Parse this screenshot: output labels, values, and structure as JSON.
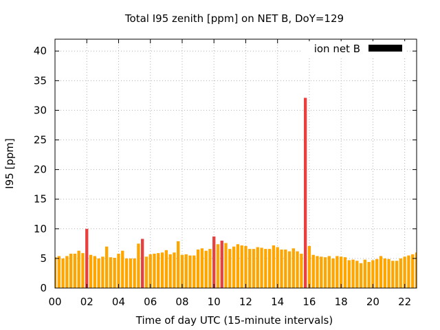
{
  "chart_data": {
    "type": "bar",
    "title": "Total I95 zenith [ppm] on NET B, DoY=129",
    "xlabel": "Time of day UTC (15-minute intervals)",
    "ylabel": "I95 [ppm]",
    "xlim": [
      0,
      22.75
    ],
    "ylim": [
      0,
      42
    ],
    "xticks": [
      "00",
      "02",
      "04",
      "06",
      "08",
      "10",
      "12",
      "14",
      "16",
      "18",
      "20",
      "22"
    ],
    "yticks": [
      "0",
      "5",
      "10",
      "15",
      "20",
      "25",
      "30",
      "35",
      "40"
    ],
    "grid": true,
    "legend": "top-right",
    "series": [
      {
        "name": "ion net B",
        "color": "#ffa500",
        "highlight_color": "#e8403f",
        "highlight_threshold": 7.9,
        "legend_color": "#000000",
        "interval_hours": 0.25,
        "values": [
          5.2,
          5.4,
          5.0,
          5.4,
          5.8,
          5.8,
          6.3,
          5.9,
          10.0,
          5.6,
          5.4,
          5.0,
          5.3,
          7.0,
          5.2,
          5.1,
          5.8,
          6.3,
          5.0,
          5.0,
          5.0,
          7.5,
          8.3,
          5.3,
          5.7,
          5.8,
          5.9,
          6.0,
          6.4,
          5.7,
          6.0,
          7.9,
          5.6,
          5.7,
          5.5,
          5.5,
          6.5,
          6.7,
          6.3,
          6.6,
          8.7,
          7.4,
          8.0,
          7.6,
          6.6,
          7.0,
          7.4,
          7.2,
          7.1,
          6.6,
          6.6,
          6.9,
          6.8,
          6.6,
          6.6,
          7.2,
          6.9,
          6.5,
          6.5,
          6.2,
          6.7,
          6.2,
          5.8,
          32.1,
          7.1,
          5.6,
          5.4,
          5.3,
          5.2,
          5.4,
          5.0,
          5.4,
          5.3,
          5.2,
          4.7,
          4.8,
          4.6,
          4.2,
          4.8,
          4.4,
          4.7,
          4.9,
          5.4,
          5.0,
          4.9,
          4.6,
          4.6,
          5.0,
          5.3,
          5.5,
          5.7,
          6.0
        ]
      }
    ]
  }
}
